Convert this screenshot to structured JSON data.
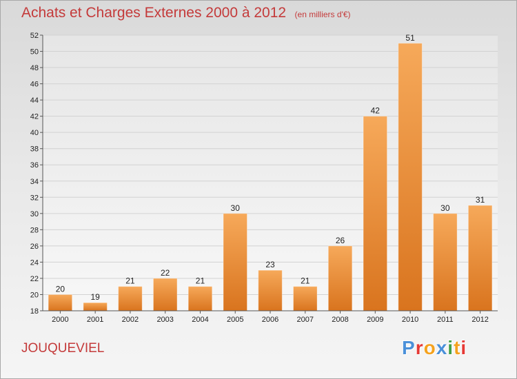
{
  "header": {
    "title": "Achats et Charges Externes 2000 à 2012",
    "unit": "(en milliers d'€)"
  },
  "footer": {
    "commune": "JOUQUEVIEL",
    "brand": "Proxiti",
    "brand_colors": [
      "#4a90d9",
      "#e53935",
      "#f4a21e",
      "#4a90d9",
      "#43a047",
      "#f4a21e",
      "#e53935"
    ]
  },
  "colors": {
    "bar_light": "#f6a95a",
    "bar_dark": "#d9741e",
    "title": "#c43a3a",
    "grid": "#d2d2d2"
  },
  "chart_data": {
    "type": "bar",
    "title": "Achats et Charges Externes 2000 à 2012",
    "subtitle": "(en milliers d'€)",
    "categories": [
      "2000",
      "2001",
      "2002",
      "2003",
      "2004",
      "2005",
      "2006",
      "2007",
      "2008",
      "2009",
      "2010",
      "2011",
      "2012"
    ],
    "values": [
      20,
      19,
      21,
      22,
      21,
      30,
      23,
      21,
      26,
      42,
      51,
      30,
      31
    ],
    "ylim": [
      18,
      52
    ],
    "yticks": [
      18,
      20,
      22,
      24,
      26,
      28,
      30,
      32,
      34,
      36,
      38,
      40,
      42,
      44,
      46,
      48,
      50,
      52
    ],
    "grid": true,
    "legend": "none"
  }
}
